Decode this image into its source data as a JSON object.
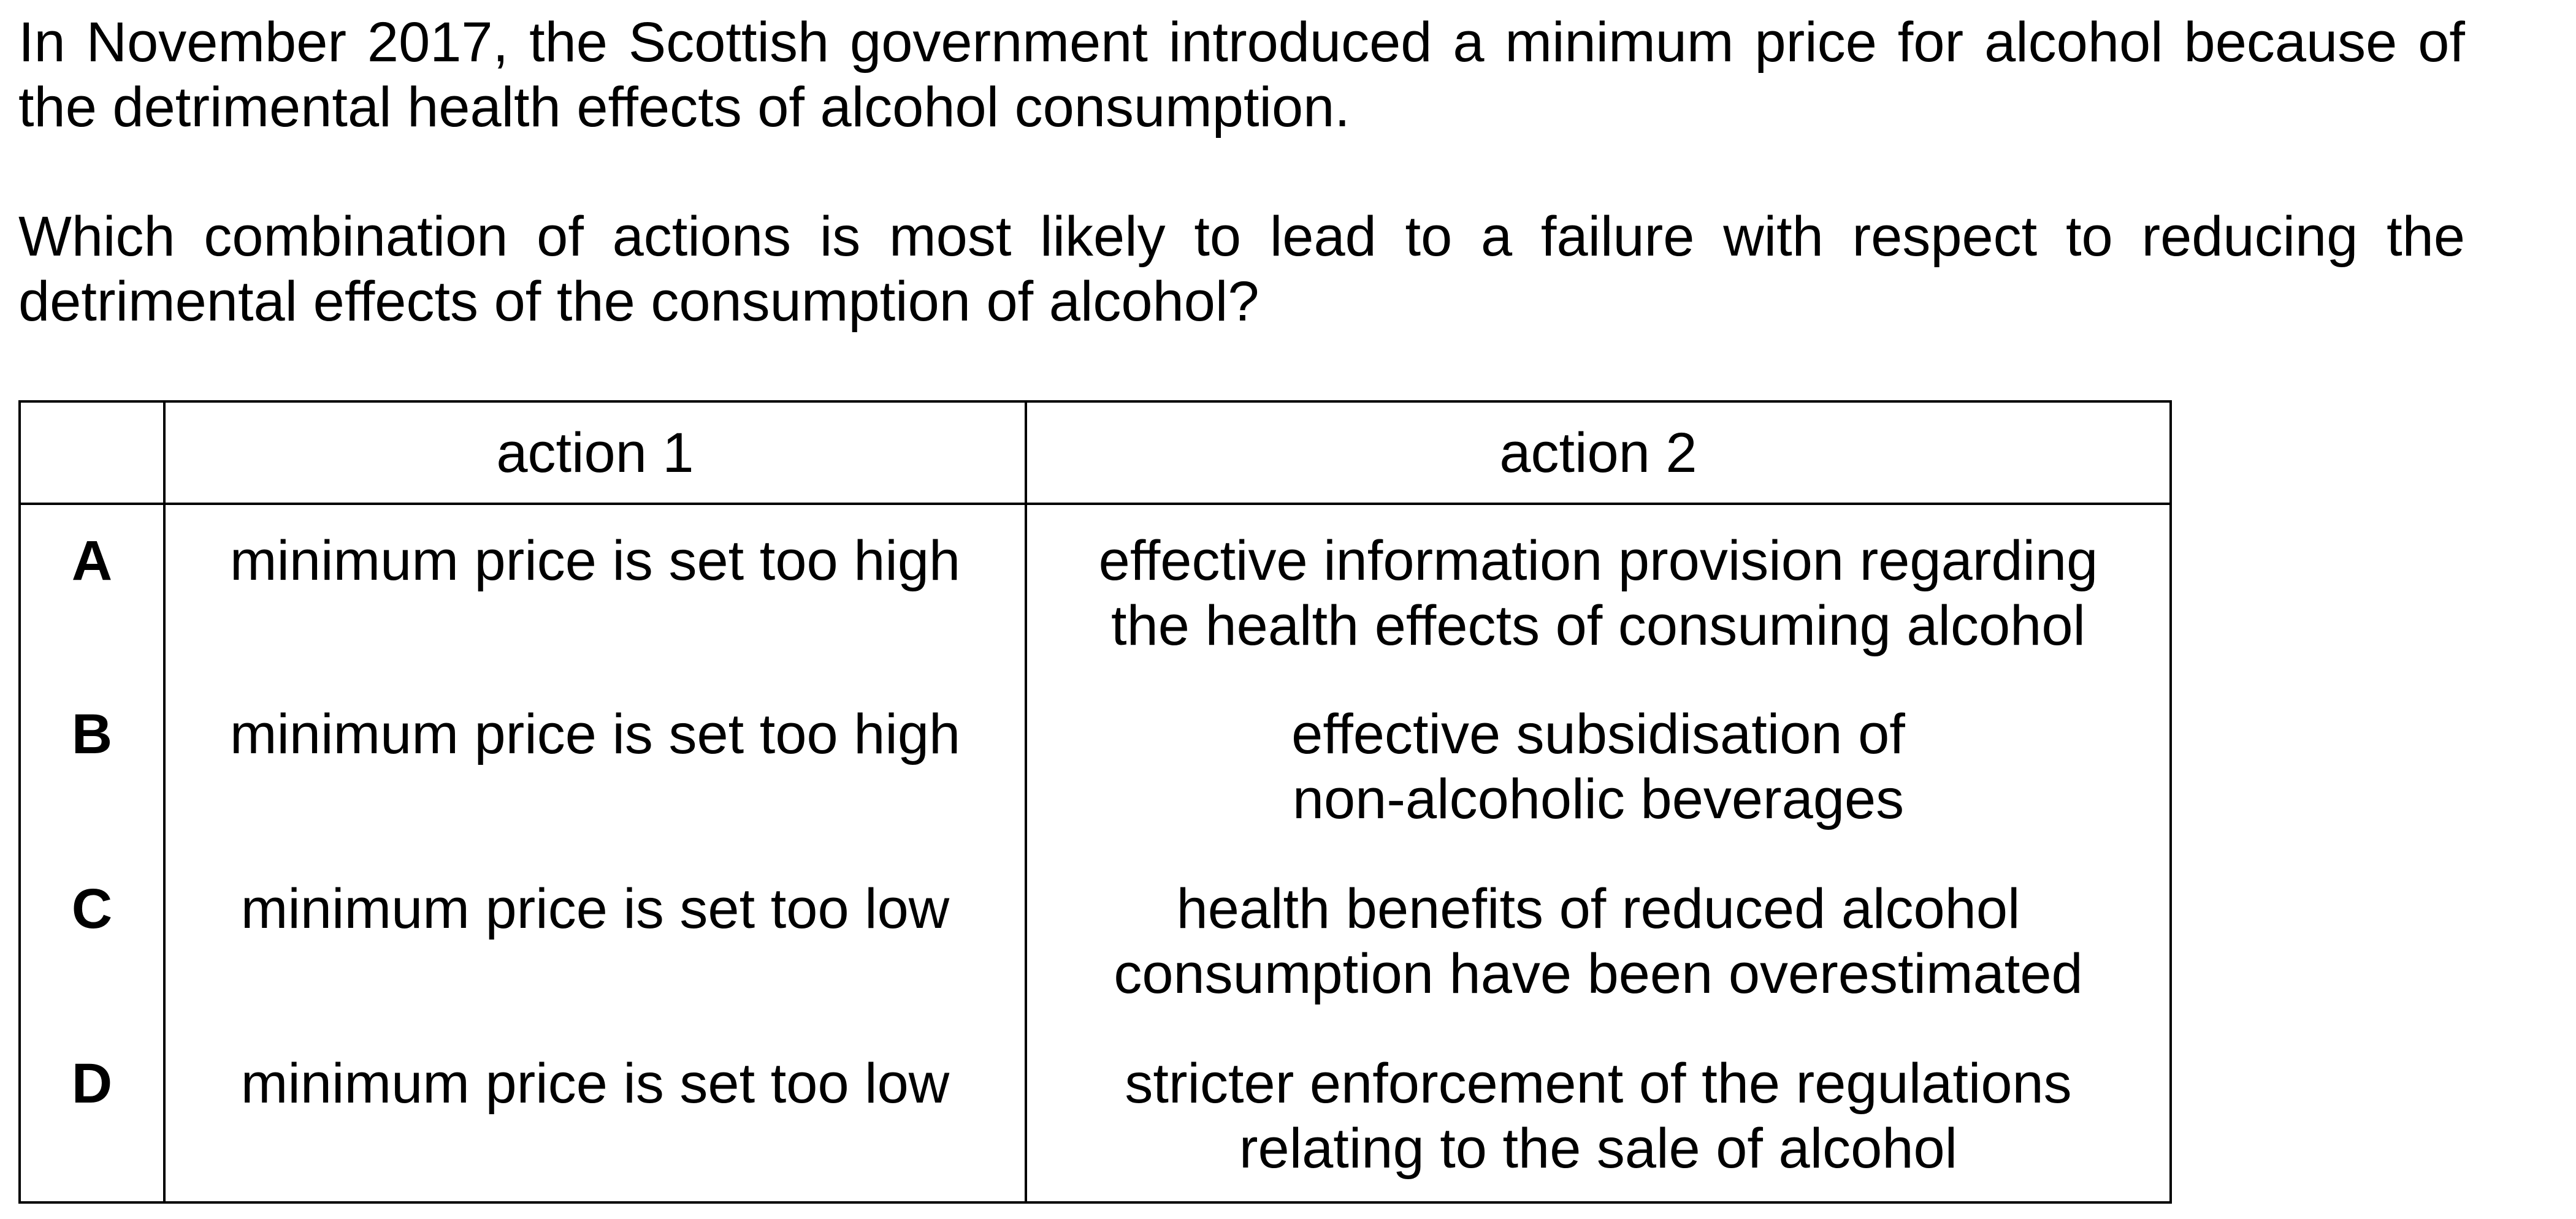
{
  "question": {
    "intro": "In November 2017, the Scottish government introduced a minimum price for alcohol because of the detrimental health effects of alcohol consumption.",
    "prompt": "Which combination of actions is most likely to lead to a failure with respect to reducing the detrimental effects of the consumption of alcohol?"
  },
  "table": {
    "headers": [
      "",
      "action 1",
      "action 2"
    ],
    "rows": [
      {
        "letter": "A",
        "action1": "minimum price is set too high",
        "action2_line1": "effective information provision regarding",
        "action2_line2": "the health effects of consuming alcohol"
      },
      {
        "letter": "B",
        "action1": "minimum price is set too high",
        "action2_line1": "effective subsidisation of",
        "action2_line2": "non-alcoholic beverages"
      },
      {
        "letter": "C",
        "action1": "minimum price is set too low",
        "action2_line1": "health benefits of reduced alcohol",
        "action2_line2": "consumption have been overestimated"
      },
      {
        "letter": "D",
        "action1": "minimum price is set too low",
        "action2_line1": "stricter enforcement of the regulations",
        "action2_line2": "relating to the sale of alcohol"
      }
    ]
  }
}
